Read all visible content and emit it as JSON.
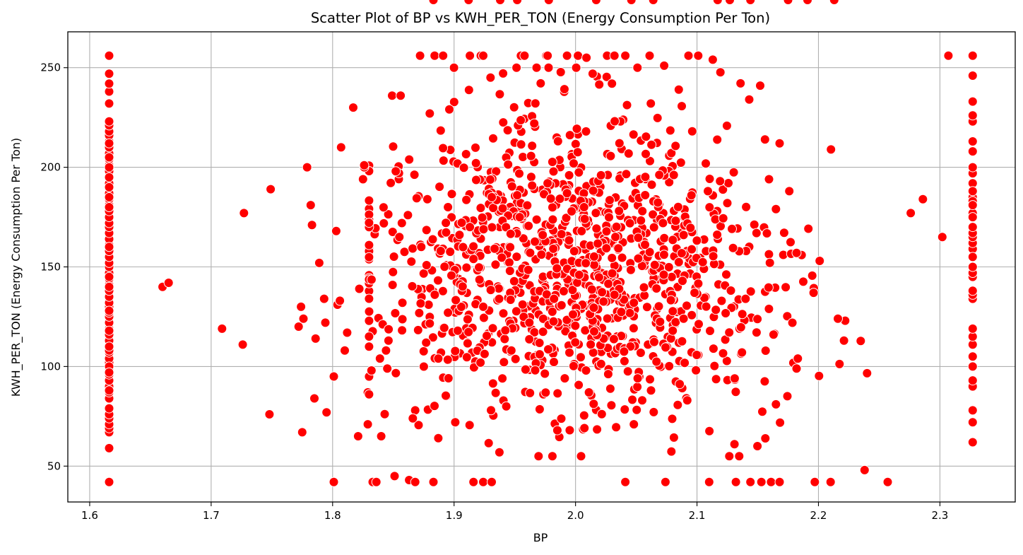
{
  "chart_data": {
    "type": "scatter",
    "title": "Scatter Plot of BP vs KWH_PER_TON (Energy Consumption Per Ton)",
    "xlabel": "BP",
    "ylabel": "KWH_PER_TON (Energy Consumption Per Ton)",
    "xlim": [
      1.582,
      2.362
    ],
    "ylim": [
      32,
      268
    ],
    "xticks": [
      1.6,
      1.7,
      1.8,
      1.9,
      2.0,
      2.1,
      2.2,
      2.3
    ],
    "xtick_labels": [
      "1.6",
      "1.7",
      "1.8",
      "1.9",
      "2.0",
      "2.1",
      "2.2",
      "2.3"
    ],
    "yticks": [
      50,
      100,
      150,
      200,
      250
    ],
    "ytick_labels": [
      "50",
      "100",
      "150",
      "200",
      "250"
    ],
    "grid": true,
    "marker_color": "#ff0000",
    "marker_edge_color": "#ffffff",
    "points_x": [
      1.616,
      1.616,
      1.616,
      1.616,
      1.616,
      1.616,
      1.616,
      1.616,
      1.616,
      1.616,
      1.616,
      1.616,
      1.616,
      1.616,
      1.616,
      1.616,
      1.616,
      1.616,
      1.616,
      1.616,
      1.616,
      1.616,
      1.616,
      1.616,
      1.616,
      1.616,
      1.616,
      1.616,
      1.616,
      1.616,
      1.616,
      1.616,
      1.616,
      1.616,
      1.616,
      1.616,
      1.616,
      1.616,
      1.616,
      1.616,
      1.616,
      1.616,
      1.616,
      1.616,
      1.616,
      1.616,
      1.616,
      1.616,
      1.616,
      1.616,
      1.616,
      1.616,
      1.616,
      1.616,
      1.616,
      1.616,
      1.616,
      1.616,
      1.616,
      1.616,
      1.616,
      1.616,
      1.616,
      1.616,
      1.616,
      1.616,
      1.616,
      1.616,
      1.616,
      1.616,
      1.616,
      1.616,
      1.616,
      1.616,
      1.616,
      1.616,
      1.616,
      1.616,
      1.616,
      1.616,
      2.327,
      2.327,
      2.327,
      2.327,
      2.327,
      2.327,
      2.327,
      2.327,
      2.327,
      2.327,
      2.327,
      2.327,
      2.327,
      2.327,
      2.327,
      2.327,
      2.327,
      2.327,
      2.327,
      2.327,
      2.327,
      2.327,
      2.327,
      2.327,
      2.327,
      2.327,
      2.327,
      2.327,
      2.327,
      2.327,
      2.327,
      2.327,
      2.327,
      2.327,
      2.327,
      2.327,
      2.327,
      2.327,
      2.327,
      2.327,
      1.66,
      1.665,
      1.709,
      1.727,
      1.726,
      1.748,
      1.749,
      1.772,
      1.774,
      1.776,
      1.775,
      1.779,
      1.782,
      1.783,
      1.785,
      1.786,
      1.789,
      1.793,
      1.794,
      1.795,
      1.801,
      1.803,
      1.804,
      1.806,
      1.81,
      1.812,
      1.817,
      1.821,
      1.822,
      1.826,
      1.829,
      1.83,
      1.833,
      1.836,
      1.84,
      1.845,
      1.849,
      1.856,
      1.863,
      1.868,
      1.883,
      1.916,
      1.924,
      1.931,
      2.041,
      2.074,
      2.11,
      2.132,
      2.144,
      2.153,
      2.161,
      2.168,
      2.197,
      2.21,
      2.238,
      2.257,
      2.276,
      2.286,
      2.302,
      2.307,
      1.872,
      1.884,
      1.891,
      1.913,
      1.922,
      1.924,
      1.955,
      1.958,
      1.976,
      1.977,
      1.993,
      2.002,
      2.026,
      2.032,
      2.041,
      2.061,
      2.093,
      2.101,
      2.156,
      2.168,
      2.182,
      1.807,
      1.825,
      1.826,
      1.852,
      1.88,
      1.895,
      1.93,
      1.952,
      1.966,
      1.977,
      2.009,
      2.03,
      2.062,
      2.073,
      2.085,
      2.113,
      2.143,
      2.152,
      2.176,
      2.201,
      2.222,
      2.221,
      2.182,
      1.801,
      1.83,
      1.868,
      1.887,
      1.901,
      1.943,
      1.985,
      2.011,
      2.048,
      2.092,
      2.131,
      2.165,
      1.829,
      1.832,
      1.839,
      1.851,
      1.866,
      1.877,
      1.887,
      1.895,
      1.903,
      1.924,
      1.946,
      1.962,
      1.995,
      2.003,
      2.032,
      2.048,
      2.08,
      2.089,
      2.098,
      2.14,
      2.163,
      2.183,
      2.196,
      2.216,
      1.844,
      1.846,
      1.855,
      1.862,
      1.878,
      1.889,
      1.913,
      1.931,
      1.954,
      1.973,
      1.993,
      2.007,
      2.021,
      2.055,
      2.072,
      2.089,
      2.109,
      2.125,
      2.149,
      2.165,
      1.857,
      1.873,
      1.883,
      1.912,
      1.938,
      1.952,
      1.978,
      2.017,
      2.046,
      2.064,
      2.117,
      2.127,
      2.144,
      2.175,
      2.191,
      2.213
    ],
    "points_y": [
      42,
      59,
      67,
      69,
      71,
      74,
      76,
      79,
      84,
      87,
      90,
      93,
      96,
      99,
      102,
      104,
      107,
      110,
      113,
      116,
      119,
      122,
      125,
      127,
      130,
      132,
      135,
      138,
      141,
      144,
      147,
      150,
      152,
      155,
      158,
      161,
      164,
      167,
      170,
      172,
      175,
      178,
      181,
      184,
      187,
      190,
      192,
      195,
      198,
      201,
      204,
      207,
      210,
      213,
      216,
      218,
      221,
      223,
      232,
      238,
      242,
      247,
      256,
      140,
      128,
      118,
      108,
      100,
      160,
      180,
      190,
      200,
      205,
      212,
      195,
      185,
      88,
      97,
      110,
      145,
      170,
      175,
      62,
      72,
      78,
      90,
      93,
      100,
      105,
      111,
      115,
      119,
      134,
      136,
      138,
      145,
      147,
      159,
      162,
      165,
      167,
      177,
      185,
      192,
      197,
      208,
      213,
      223,
      226,
      233,
      246,
      256,
      188,
      183,
      155,
      150,
      175,
      181,
      170,
      200,
      140,
      142,
      119,
      177,
      111,
      76,
      189,
      120,
      130,
      124,
      67,
      200,
      181,
      171,
      84,
      114,
      152,
      134,
      122,
      77,
      42,
      168,
      131,
      133,
      108,
      117,
      230,
      65,
      139,
      200,
      87,
      110,
      42,
      42,
      65,
      99,
      236,
      236,
      43,
      42,
      42,
      42,
      42,
      42,
      42,
      42,
      42,
      42,
      42,
      42,
      42,
      42,
      42,
      42,
      48,
      42,
      177,
      184,
      165,
      256,
      256,
      256,
      256,
      256,
      256,
      256,
      256,
      256,
      256,
      256,
      256,
      256,
      256,
      256,
      256,
      256,
      256,
      256,
      214,
      212,
      157,
      210,
      194,
      201,
      198,
      227,
      180,
      245,
      186,
      222,
      192,
      255,
      242,
      232,
      251,
      239,
      254,
      234,
      241,
      188,
      153,
      123,
      113,
      99,
      95,
      86,
      78,
      64,
      72,
      80,
      68,
      87,
      71,
      83,
      94,
      81,
      71,
      98,
      104,
      45,
      74,
      112,
      104,
      127,
      118,
      130,
      148,
      122,
      107,
      146,
      136,
      132,
      118,
      124,
      137,
      134,
      116,
      104,
      137,
      124,
      108,
      113,
      165,
      176,
      184,
      158,
      170,
      185,
      175,
      166,
      187,
      180,
      196,
      178,
      172,
      166,
      188,
      182,
      167,
      179,
      172,
      160
    ],
    "cloud_count": 1100
  }
}
